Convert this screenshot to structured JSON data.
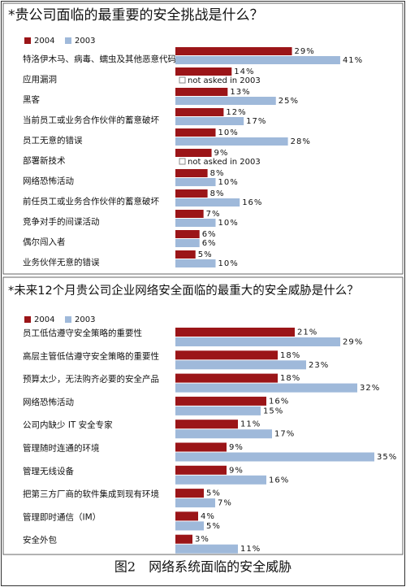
{
  "chart_data": [
    {
      "type": "bar",
      "orientation": "horizontal",
      "title": "*贵公司面临的最重要的安全挑战是什么？",
      "categories": [
        "特洛伊木马、病毒、蠕虫及其他恶意代码",
        "应用漏洞",
        "黑客",
        "当前员工或业务合作伙伴的蓄意破坏",
        "员工无意的错误",
        "部署新技术",
        "网络恐怖活动",
        "前任员工或业务合作伙伴的蓄意破坏",
        "竞争对手的间谍活动",
        "偶尔闯入者",
        "业务伙伴无意的错误"
      ],
      "series": [
        {
          "name": "2004",
          "color": "#9b1518",
          "values": [
            29,
            14,
            13,
            12,
            10,
            9,
            8,
            8,
            7,
            6,
            5
          ],
          "value_labels": [
            "29%",
            "14%",
            "13%",
            "12%",
            "10%",
            "9%",
            "8%",
            "8%",
            "7%",
            "6%",
            "5%"
          ]
        },
        {
          "name": "2003",
          "color": "#9fb9da",
          "values": [
            41,
            null,
            25,
            17,
            28,
            null,
            10,
            16,
            10,
            6,
            10
          ],
          "value_labels": [
            "41%",
            "not asked in 2003",
            "25%",
            "17%",
            "28%",
            "not asked in 2003",
            "10%",
            "16%",
            "10%",
            "6%",
            "10%"
          ]
        }
      ]
    },
    {
      "type": "bar",
      "orientation": "horizontal",
      "title": "*未来12个月贵公司企业网络安全面临的最重大的安全威胁是什么？",
      "categories": [
        "员工低估遵守安全策略的重要性",
        "高层主管低估遵守安全策略的重要性",
        "预算太少，无法购齐必要的安全产品",
        "网络恐怖活动",
        "公司内缺少 IT 安全专家",
        "管理随时连通的环境",
        "管理无线设备",
        "把第三方厂商的软件集成到现有环境",
        "管理即时通信（IM）",
        "安全外包"
      ],
      "series": [
        {
          "name": "2004",
          "color": "#9b1518",
          "values": [
            21,
            18,
            18,
            16,
            11,
            9,
            9,
            5,
            4,
            3
          ],
          "value_labels": [
            "21%",
            "18%",
            "18%",
            "16%",
            "11%",
            "9%",
            "9%",
            "5%",
            "4%",
            "3%"
          ]
        },
        {
          "name": "2003",
          "color": "#9fb9da",
          "values": [
            29,
            23,
            32,
            15,
            17,
            35,
            16,
            7,
            5,
            11
          ],
          "value_labels": [
            "29%",
            "23%",
            "32%",
            "15%",
            "17%",
            "35%",
            "16%",
            "7%",
            "5%",
            "11%"
          ]
        }
      ]
    }
  ],
  "caption": "图2　网络系统面临的安全威胁"
}
